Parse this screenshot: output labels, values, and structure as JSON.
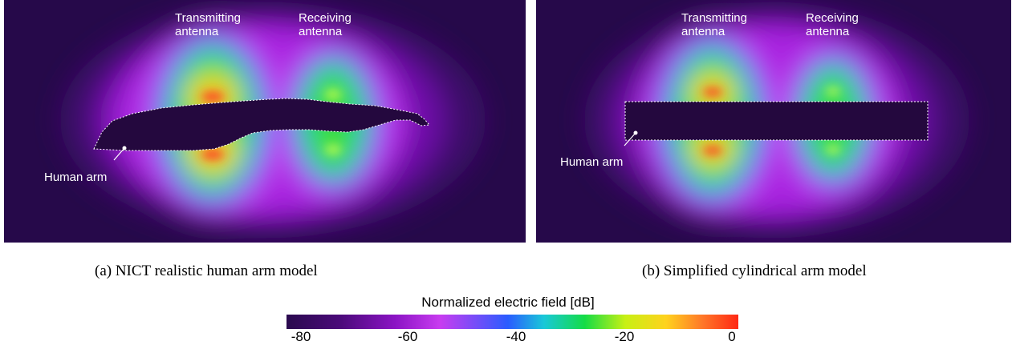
{
  "panels": [
    {
      "transmitting_label": [
        "Transmitting",
        "antenna"
      ],
      "receiving_label": [
        "Receiving",
        "antenna"
      ],
      "arm_label": "Human arm",
      "caption": "(a) NICT realistic human arm model"
    },
    {
      "transmitting_label": [
        "Transmitting",
        "antenna"
      ],
      "receiving_label": [
        "Receiving",
        "antenna"
      ],
      "arm_label": "Human arm",
      "caption": "(b) Simplified cylindrical arm model"
    }
  ],
  "colorbar": {
    "title": "Normalized electric field [dB]",
    "ticks": [
      "-80",
      "-60",
      "-40",
      "-20",
      "0"
    ],
    "min": -80,
    "max": 0,
    "colors": [
      "#2a0a4e",
      "#4b0a7a",
      "#8b14c4",
      "#c83cf0",
      "#2a5cff",
      "#19c8d8",
      "#14dc46",
      "#c8f014",
      "#ffd21e",
      "#ff7828",
      "#ff2814"
    ]
  }
}
